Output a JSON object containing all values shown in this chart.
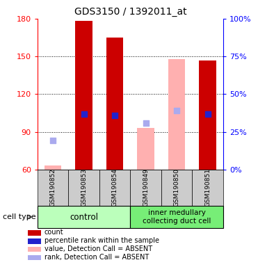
{
  "title": "GDS3150 / 1392011_at",
  "samples": [
    "GSM190852",
    "GSM190853",
    "GSM190854",
    "GSM190849",
    "GSM190850",
    "GSM190851"
  ],
  "ylim": [
    60,
    180
  ],
  "yticks_left": [
    60,
    90,
    120,
    150,
    180
  ],
  "yticks_right_vals": [
    0,
    25,
    50,
    75,
    100
  ],
  "bar_values": [
    63,
    178,
    165,
    93,
    148,
    147
  ],
  "bar_absent": [
    true,
    false,
    false,
    true,
    true,
    false
  ],
  "rank_values": [
    83,
    104,
    103,
    97,
    107,
    104
  ],
  "rank_absent": [
    true,
    false,
    false,
    true,
    true,
    false
  ],
  "color_red_bar": "#cc0000",
  "color_pink_bar": "#ffb0b0",
  "color_blue_dot": "#2222cc",
  "color_lightblue_dot": "#aaaaee",
  "bar_width": 0.55,
  "dot_size": 28,
  "control_color": "#bbffbb",
  "imcd_color": "#77ee77",
  "sample_box_color": "#cccccc",
  "legend_items": [
    {
      "label": "count",
      "color": "#cc0000"
    },
    {
      "label": "percentile rank within the sample",
      "color": "#2222cc"
    },
    {
      "label": "value, Detection Call = ABSENT",
      "color": "#ffb0b0"
    },
    {
      "label": "rank, Detection Call = ABSENT",
      "color": "#aaaaee"
    }
  ]
}
